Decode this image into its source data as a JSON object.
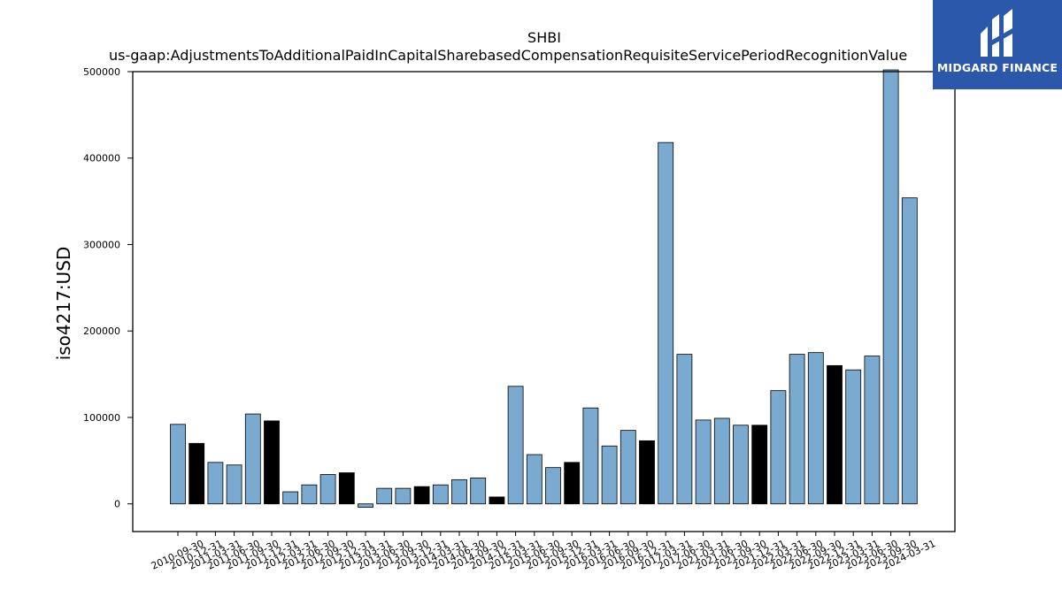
{
  "chart_data": {
    "type": "bar",
    "title": "SHBI",
    "subtitle": "us-gaap:AdjustmentsToAdditionalPaidInCapitalSharebasedCompensationRequisiteServicePeriodRecognitionValue",
    "xlabel": "",
    "ylabel": "iso4217:USD",
    "ylim": [
      -32000,
      500000
    ],
    "yticks": [
      0,
      100000,
      200000,
      300000,
      400000,
      500000
    ],
    "grid": false,
    "colors": {
      "default": "#7aaad0",
      "highlight": "#000000",
      "edge": "#000000"
    },
    "categories": [
      "2010-09-30",
      "2010-12-31",
      "2011-03-31",
      "2011-06-30",
      "2011-09-30",
      "2011-12-31",
      "2012-03-31",
      "2012-06-30",
      "2012-09-30",
      "2012-12-31",
      "2013-03-31",
      "2013-06-30",
      "2013-09-30",
      "2013-12-31",
      "2014-03-31",
      "2014-06-30",
      "2014-09-30",
      "2014-12-31",
      "2015-03-31",
      "2015-06-30",
      "2015-09-30",
      "2015-12-31",
      "2016-03-31",
      "2016-06-30",
      "2016-09-30",
      "2016-12-31",
      "2017-03-31",
      "2017-06-30",
      "2021-03-31",
      "2021-06-30",
      "2021-09-30",
      "2021-12-31",
      "2022-03-31",
      "2022-06-30",
      "2022-09-30",
      "2022-12-31",
      "2023-03-31",
      "2023-06-30",
      "2023-09-30",
      "2024-03-31"
    ],
    "values": [
      92000,
      70000,
      48000,
      45000,
      104000,
      96000,
      14000,
      22000,
      34000,
      36000,
      -4000,
      18000,
      18000,
      20000,
      22000,
      28000,
      30000,
      8000,
      136000,
      57000,
      42000,
      48000,
      111000,
      67000,
      85000,
      73000,
      418000,
      173000,
      97000,
      99000,
      91000,
      91000,
      131000,
      173000,
      175000,
      160000,
      155000,
      171000,
      502000,
      354000
    ],
    "highlighted": [
      false,
      true,
      false,
      false,
      false,
      true,
      false,
      false,
      false,
      true,
      false,
      false,
      false,
      true,
      false,
      false,
      false,
      true,
      false,
      false,
      false,
      true,
      false,
      false,
      false,
      true,
      false,
      false,
      false,
      false,
      false,
      true,
      false,
      false,
      false,
      true,
      false,
      false,
      false,
      false
    ]
  },
  "logo": {
    "text": "MIDGARD FINANCE",
    "color": "#2b58ab"
  }
}
